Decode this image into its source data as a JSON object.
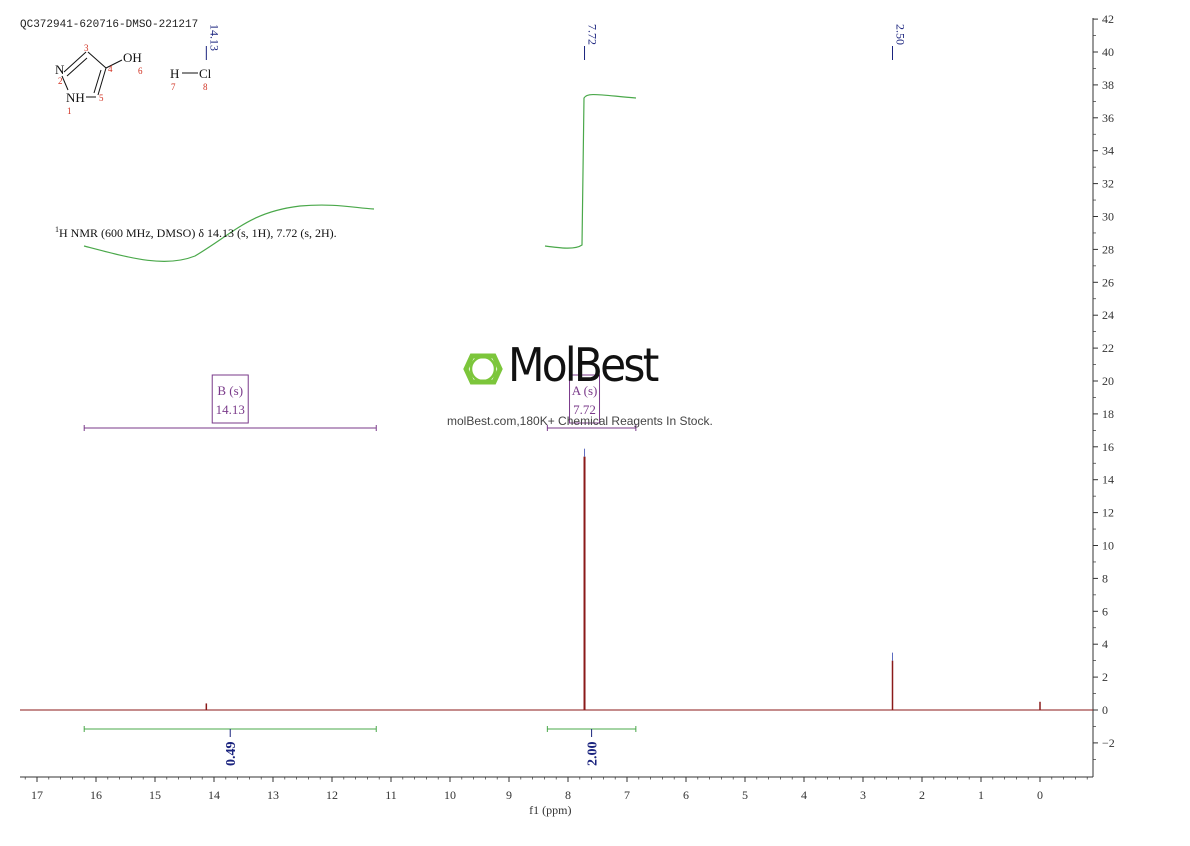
{
  "sample_id": "QC372941-620716-DMSO-221217",
  "nmr_summary": {
    "nucleus_superscript": "1",
    "text": "H NMR (600 MHz, DMSO) δ 14.13 (s, 1H), 7.72 (s, 2H)."
  },
  "watermark": {
    "brand": "MolBest",
    "tagline": "molBest.com,180K+ Chemical Reagents In Stock.",
    "brand_color": "#7cc63b"
  },
  "structure": {
    "atoms": [
      {
        "label": "N",
        "number": "2"
      },
      {
        "label": "NH",
        "number": "1"
      },
      {
        "label": "OH",
        "number": "6"
      },
      {
        "label": "H",
        "number": "7"
      },
      {
        "label": "Cl",
        "number": "8"
      }
    ],
    "ring_numbers": [
      "3",
      "4",
      "5"
    ],
    "number_color": "#d03020"
  },
  "chart_data": {
    "type": "line",
    "xlabel": "f1 (ppm)",
    "xlim": [
      17.3,
      -0.9
    ],
    "x_ticks": [
      17,
      16,
      15,
      14,
      13,
      12,
      11,
      10,
      9,
      8,
      7,
      6,
      5,
      4,
      3,
      2,
      1,
      0
    ],
    "ylim": [
      -4,
      42
    ],
    "y_ticks": [
      -2,
      0,
      2,
      4,
      6,
      8,
      10,
      12,
      14,
      16,
      18,
      20,
      22,
      24,
      26,
      28,
      30,
      32,
      34,
      36,
      38,
      40,
      42
    ],
    "peaks": [
      {
        "ppm": 14.13,
        "height": 0.4
      },
      {
        "ppm": 7.72,
        "height": 15.4
      },
      {
        "ppm": 2.5,
        "height": 3.0
      },
      {
        "ppm": 0.0,
        "height": 0.5
      }
    ],
    "peak_labels": [
      {
        "ppm": 14.13,
        "label": "14.13"
      },
      {
        "ppm": 7.72,
        "label": "7.72"
      },
      {
        "ppm": 2.5,
        "label": "2.50"
      }
    ],
    "multiplets": [
      {
        "label_top": "B (s)",
        "label_bottom": "14.13",
        "from_ppm": 16.2,
        "to_ppm": 11.25
      },
      {
        "label_top": "A (s)",
        "label_bottom": "7.72",
        "from_ppm": 8.35,
        "to_ppm": 6.85
      }
    ],
    "integrals": [
      {
        "from_ppm": 16.2,
        "to_ppm": 11.25,
        "value": "0.49"
      },
      {
        "from_ppm": 8.35,
        "to_ppm": 6.85,
        "value": "2.00"
      }
    ],
    "colors": {
      "spectrum": "#8b1a1a",
      "integral": "#4aa84a",
      "multiplet": "#7a3a8a",
      "peak_label": "#1a237e",
      "axis": "#333333"
    }
  }
}
